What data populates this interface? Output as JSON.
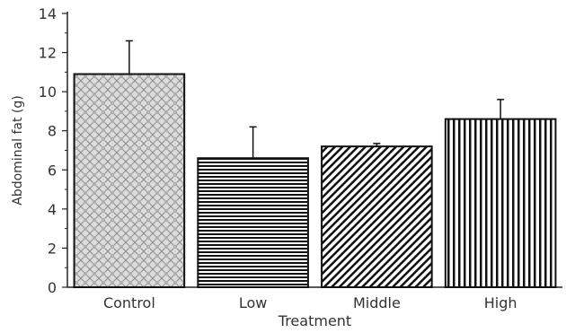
{
  "chart_data": {
    "type": "bar",
    "categories": [
      "Control",
      "Low",
      "Middle",
      "High"
    ],
    "values": [
      10.9,
      6.6,
      7.2,
      8.6
    ],
    "error_upper": [
      1.7,
      1.6,
      0.15,
      1.0
    ],
    "title": "",
    "xlabel": "Treatment",
    "ylabel": "Abdominal fat (g)",
    "ylim": [
      0,
      14
    ],
    "yticks": [
      0,
      2,
      4,
      6,
      8,
      10,
      12,
      14
    ],
    "grid": false,
    "legend": "none",
    "bar_fills": [
      "crosshatch",
      "horizontal-lines",
      "diagonal-lines",
      "vertical-lines"
    ],
    "bar_color": "#111111"
  }
}
